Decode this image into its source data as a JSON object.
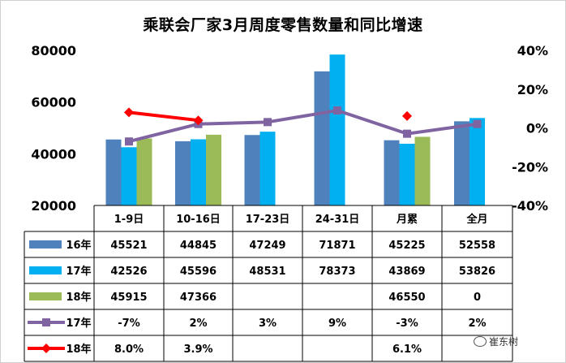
{
  "title": "乘联会厂家3月周度零售数量和同比增速",
  "watermark": "崔东树",
  "chart_data": {
    "type": "bar",
    "categories": [
      "1-9日",
      "10-16日",
      "17-23日",
      "24-31日",
      "月累",
      "全月"
    ],
    "bar_series": [
      {
        "name": "16年",
        "color": "#4f81bd",
        "values": [
          45521,
          44845,
          47249,
          71871,
          45225,
          52558
        ]
      },
      {
        "name": "17年",
        "color": "#00b0f0",
        "values": [
          42526,
          45596,
          48531,
          78373,
          43869,
          53826
        ]
      },
      {
        "name": "18年",
        "color": "#9bbb59",
        "values": [
          45915,
          47366,
          null,
          null,
          46550,
          0
        ]
      }
    ],
    "line_series": [
      {
        "name": "17年",
        "color": "#8064a2",
        "marker": "square",
        "values": [
          -7,
          2,
          3,
          9,
          -3,
          2
        ],
        "labels": [
          "-7%",
          "2%",
          "3%",
          "9%",
          "-3%",
          "2%"
        ]
      },
      {
        "name": "18年",
        "color": "#ff0000",
        "marker": "diamond",
        "values": [
          8.0,
          3.9,
          null,
          null,
          6.1,
          null
        ],
        "labels": [
          "8.0%",
          "3.9%",
          "",
          "",
          "6.1%",
          ""
        ]
      }
    ],
    "table_rows": [
      {
        "series": "16年",
        "cells": [
          "45521",
          "44845",
          "47249",
          "71871",
          "45225",
          "52558"
        ]
      },
      {
        "series": "17年",
        "cells": [
          "42526",
          "45596",
          "48531",
          "78373",
          "43869",
          "53826"
        ]
      },
      {
        "series": "18年",
        "cells": [
          "45915",
          "47366",
          "",
          "",
          "46550",
          "0"
        ]
      },
      {
        "series": "17年",
        "cells": [
          "-7%",
          "2%",
          "3%",
          "9%",
          "-3%",
          "2%"
        ]
      },
      {
        "series": "18年",
        "cells": [
          "8.0%",
          "3.9%",
          "",
          "",
          "6.1%",
          ""
        ]
      }
    ],
    "y_left": {
      "min": 20000,
      "max": 80000,
      "ticks": [
        "20000",
        "40000",
        "60000",
        "80000"
      ]
    },
    "y_right": {
      "min": -40,
      "max": 40,
      "ticks": [
        "-40%",
        "-20%",
        "0%",
        "20%",
        "40%"
      ]
    },
    "grid": false,
    "legend": "data-table"
  }
}
